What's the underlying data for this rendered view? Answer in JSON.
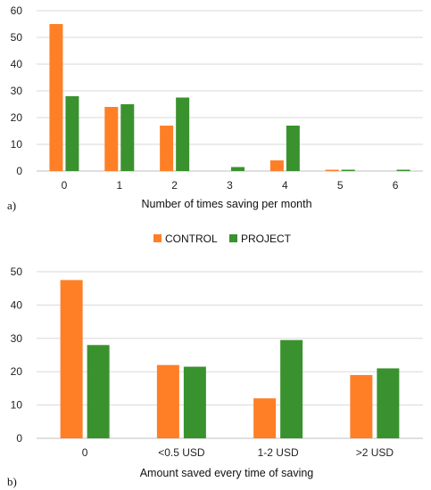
{
  "chart_data": [
    {
      "type": "bar",
      "panel": "a)",
      "categories": [
        "0",
        "1",
        "2",
        "3",
        "4",
        "5",
        "6"
      ],
      "series": [
        {
          "name": "CONTROL",
          "color": "#ff7f27",
          "values": [
            55,
            24,
            17,
            0,
            4,
            0.5,
            0
          ]
        },
        {
          "name": "PROJECT",
          "color": "#3a922f",
          "values": [
            28,
            25,
            27.5,
            1.5,
            17,
            0.5,
            0.5
          ]
        }
      ],
      "xlabel": "Number of times saving per month",
      "ylabel": "",
      "ylim": [
        0,
        60
      ],
      "yticks": [
        0,
        10,
        20,
        30,
        40,
        50,
        60
      ],
      "grid": true
    },
    {
      "type": "bar",
      "panel": "b)",
      "categories": [
        "0",
        "<0.5 USD",
        "1-2 USD",
        ">2 USD"
      ],
      "series": [
        {
          "name": "CONTROL",
          "color": "#ff7f27",
          "values": [
            47.5,
            22,
            12,
            19
          ]
        },
        {
          "name": "PROJECT",
          "color": "#3a922f",
          "values": [
            28,
            21.5,
            29.5,
            21
          ]
        }
      ],
      "xlabel": "Amount saved every time of saving",
      "ylabel": "",
      "ylim": [
        0,
        50
      ],
      "yticks": [
        0,
        10,
        20,
        30,
        40,
        50
      ],
      "grid": true
    }
  ],
  "legend": {
    "position": "between panels, centered",
    "items": [
      {
        "label": "CONTROL",
        "color": "#ff7f27"
      },
      {
        "label": "PROJECT",
        "color": "#3a922f"
      }
    ]
  }
}
